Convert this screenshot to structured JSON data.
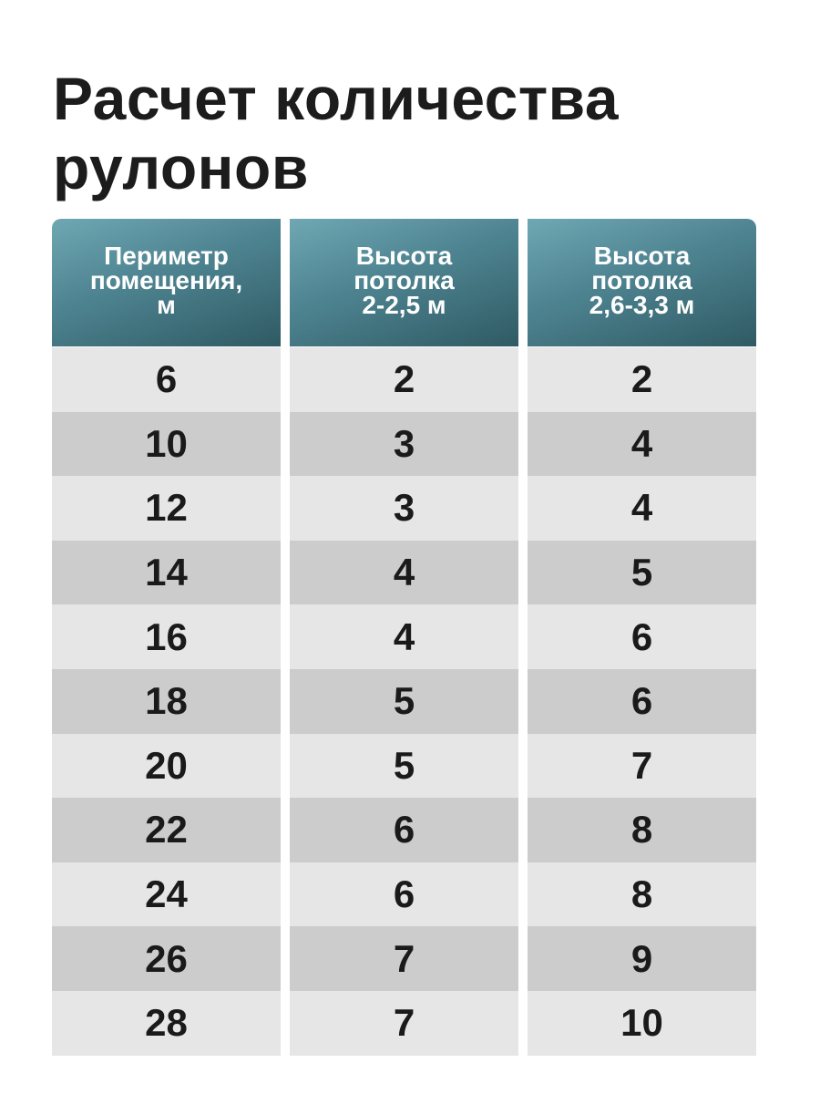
{
  "title": "Расчет количества рулонов",
  "table": {
    "columns": [
      {
        "header": [
          "Периметр",
          "помещения,",
          "м"
        ],
        "values": [
          "6",
          "10",
          "12",
          "14",
          "16",
          "18",
          "20",
          "22",
          "24",
          "26",
          "28"
        ]
      },
      {
        "header": [
          "Высота",
          "потолка",
          "2-2,5 м"
        ],
        "values": [
          "2",
          "3",
          "3",
          "4",
          "4",
          "5",
          "5",
          "6",
          "6",
          "7",
          "7"
        ]
      },
      {
        "header": [
          "Высота",
          "потолка",
          "2,6-3,3 м"
        ],
        "values": [
          "2",
          "4",
          "4",
          "5",
          "6",
          "6",
          "7",
          "8",
          "8",
          "9",
          "10"
        ]
      }
    ]
  },
  "colors": {
    "header_light": "#6fa7b3",
    "header_dark": "#2f5a63",
    "row_light": "#e6e6e6",
    "row_dark": "#cccccc"
  }
}
